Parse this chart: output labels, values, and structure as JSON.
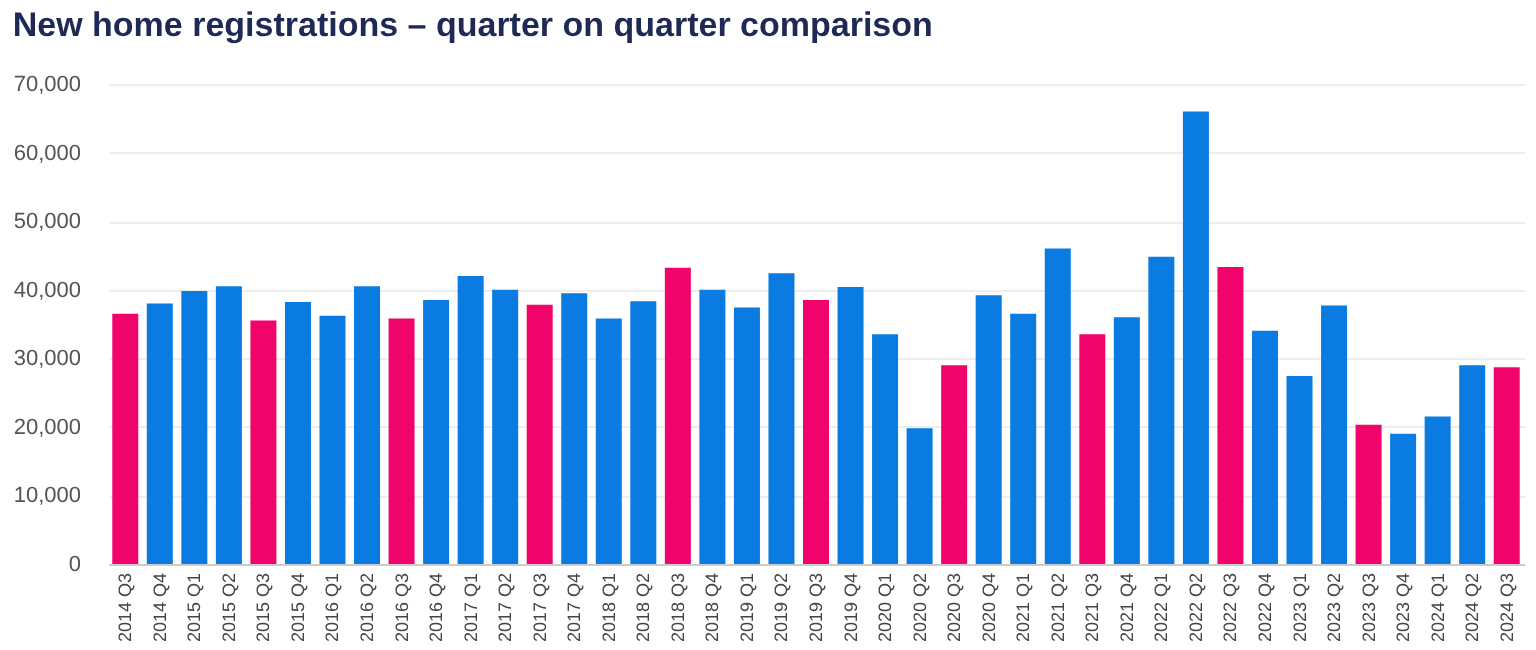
{
  "chart_data": {
    "type": "bar",
    "title": "New home registrations – quarter on quarter comparison",
    "categories": [
      "2014 Q3",
      "2014 Q4",
      "2015 Q1",
      "2015 Q2",
      "2015 Q3",
      "2015 Q4",
      "2016 Q1",
      "2016 Q2",
      "2016 Q3",
      "2016 Q4",
      "2017 Q1",
      "2017 Q2",
      "2017 Q3",
      "2017 Q4",
      "2018 Q1",
      "2018 Q2",
      "2018 Q3",
      "2018 Q4",
      "2019 Q1",
      "2019 Q2",
      "2019 Q3",
      "2019 Q4",
      "2020 Q1",
      "2020 Q2",
      "2020 Q3",
      "2020 Q4",
      "2021 Q1",
      "2021 Q2",
      "2021 Q3",
      "2021 Q4",
      "2022 Q1",
      "2022 Q2",
      "2022 Q3",
      "2022 Q4",
      "2023 Q1",
      "2023 Q2",
      "2023 Q3",
      "2023 Q4",
      "2024 Q1",
      "2024 Q2",
      "2024 Q3"
    ],
    "values": [
      36500,
      38000,
      39800,
      40500,
      35500,
      38200,
      36200,
      40500,
      35800,
      38500,
      42000,
      40000,
      37800,
      39500,
      35800,
      38300,
      43200,
      40000,
      37400,
      42400,
      38500,
      40400,
      33500,
      19800,
      29000,
      39200,
      36500,
      46000,
      33500,
      36000,
      44800,
      66000,
      43300,
      34000,
      27400,
      37700,
      20300,
      19000,
      21500,
      29000,
      28700
    ],
    "colors": [
      "#f0046b",
      "#0a7be0",
      "#0a7be0",
      "#0a7be0",
      "#f0046b",
      "#0a7be0",
      "#0a7be0",
      "#0a7be0",
      "#f0046b",
      "#0a7be0",
      "#0a7be0",
      "#0a7be0",
      "#f0046b",
      "#0a7be0",
      "#0a7be0",
      "#0a7be0",
      "#f0046b",
      "#0a7be0",
      "#0a7be0",
      "#0a7be0",
      "#f0046b",
      "#0a7be0",
      "#0a7be0",
      "#0a7be0",
      "#f0046b",
      "#0a7be0",
      "#0a7be0",
      "#0a7be0",
      "#f0046b",
      "#0a7be0",
      "#0a7be0",
      "#0a7be0",
      "#f0046b",
      "#0a7be0",
      "#0a7be0",
      "#0a7be0",
      "#f0046b",
      "#0a7be0",
      "#0a7be0",
      "#0a7be0",
      "#f0046b"
    ],
    "ylim": [
      0,
      70000
    ],
    "yticks": [
      {
        "value": 0,
        "label": "0"
      },
      {
        "value": 10000,
        "label": "10,000"
      },
      {
        "value": 20000,
        "label": "20,000"
      },
      {
        "value": 30000,
        "label": "30,000"
      },
      {
        "value": 40000,
        "label": "40,000"
      },
      {
        "value": 50000,
        "label": "50,000"
      },
      {
        "value": 60000,
        "label": "60,000"
      },
      {
        "value": 70000,
        "label": "70,000"
      }
    ],
    "grid": "y"
  }
}
